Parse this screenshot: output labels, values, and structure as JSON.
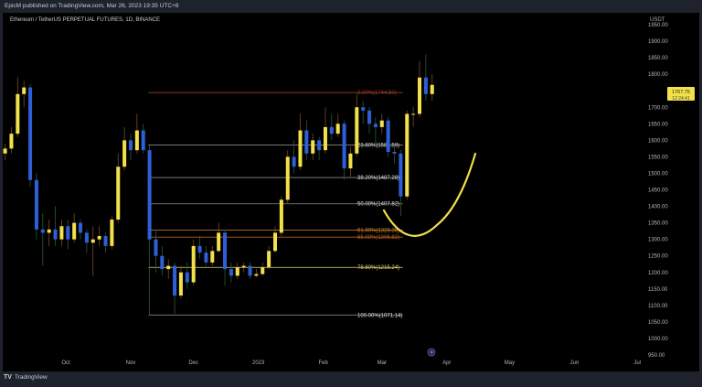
{
  "header": {
    "published": "EpicM published on TradingView.com, Mar 26, 2023 19:35 UTC+8"
  },
  "symbol": "Ethereum / TetherUS PERPETUAL FUTURES, 1D, BINANCE",
  "footer": {
    "brand": "TradingView"
  },
  "colors": {
    "up": "#f2e14a",
    "down": "#2f5fd8",
    "background": "#000000",
    "price_tag": "#f2e14a",
    "curve": "#f2e14a"
  },
  "chart_data": {
    "type": "candlestick",
    "currency": "USDT",
    "ylim": [
      930,
      1990
    ],
    "y_ticks": [
      "1950.00",
      "1900.00",
      "1850.00",
      "1800.00",
      "1700.00",
      "1650.00",
      "1600.00",
      "1550.00",
      "1500.00",
      "1450.00",
      "1400.00",
      "1350.00",
      "1300.00",
      "1250.00",
      "1200.00",
      "1150.00",
      "1100.00",
      "1050.00",
      "1000.00",
      "950.00"
    ],
    "x_ticks": [
      {
        "label": "Oct",
        "date": "2022-10-01"
      },
      {
        "label": "Nov",
        "date": "2022-11-01"
      },
      {
        "label": "Dec",
        "date": "2022-12-01"
      },
      {
        "label": "2023",
        "date": "2023-01-01"
      },
      {
        "label": "Feb",
        "date": "2023-02-01"
      },
      {
        "label": "Mar",
        "date": "2023-03-01"
      },
      {
        "label": "Apr",
        "date": "2023-04-01"
      },
      {
        "label": "May",
        "date": "2023-05-01"
      },
      {
        "label": "Jun",
        "date": "2023-06-01"
      },
      {
        "label": "Jul",
        "date": "2023-07-01"
      }
    ],
    "last_price": {
      "value": "1767.75",
      "countdown": "12:24:41"
    },
    "candles_columns": [
      "date",
      "open",
      "high",
      "low",
      "close"
    ],
    "candles": [
      [
        "2022-09-02",
        1560,
        1590,
        1540,
        1575
      ],
      [
        "2022-09-05",
        1575,
        1640,
        1560,
        1620
      ],
      [
        "2022-09-08",
        1620,
        1790,
        1610,
        1740
      ],
      [
        "2022-09-11",
        1740,
        1780,
        1700,
        1760
      ],
      [
        "2022-09-14",
        1760,
        1770,
        1460,
        1480
      ],
      [
        "2022-09-17",
        1480,
        1500,
        1300,
        1330
      ],
      [
        "2022-09-20",
        1330,
        1380,
        1220,
        1320
      ],
      [
        "2022-09-23",
        1320,
        1360,
        1280,
        1330
      ],
      [
        "2022-09-26",
        1330,
        1400,
        1280,
        1300
      ],
      [
        "2022-09-29",
        1300,
        1360,
        1280,
        1340
      ],
      [
        "2022-10-02",
        1340,
        1360,
        1270,
        1300
      ],
      [
        "2022-10-05",
        1300,
        1380,
        1290,
        1350
      ],
      [
        "2022-10-08",
        1350,
        1360,
        1300,
        1320
      ],
      [
        "2022-10-11",
        1320,
        1330,
        1260,
        1290
      ],
      [
        "2022-10-14",
        1290,
        1340,
        1190,
        1300
      ],
      [
        "2022-10-17",
        1300,
        1340,
        1280,
        1310
      ],
      [
        "2022-10-20",
        1310,
        1320,
        1260,
        1280
      ],
      [
        "2022-10-23",
        1280,
        1370,
        1270,
        1360
      ],
      [
        "2022-10-26",
        1360,
        1560,
        1350,
        1520
      ],
      [
        "2022-10-29",
        1520,
        1640,
        1510,
        1600
      ],
      [
        "2022-11-01",
        1600,
        1620,
        1540,
        1570
      ],
      [
        "2022-11-04",
        1570,
        1680,
        1560,
        1630
      ],
      [
        "2022-11-07",
        1630,
        1650,
        1560,
        1570
      ],
      [
        "2022-11-10",
        1570,
        1590,
        1070,
        1300
      ],
      [
        "2022-11-13",
        1300,
        1330,
        1200,
        1250
      ],
      [
        "2022-11-16",
        1250,
        1280,
        1190,
        1210
      ],
      [
        "2022-11-19",
        1210,
        1240,
        1180,
        1220
      ],
      [
        "2022-11-22",
        1220,
        1230,
        1075,
        1130
      ],
      [
        "2022-11-25",
        1130,
        1220,
        1120,
        1200
      ],
      [
        "2022-11-28",
        1200,
        1230,
        1150,
        1170
      ],
      [
        "2022-12-01",
        1170,
        1300,
        1160,
        1280
      ],
      [
        "2022-12-04",
        1280,
        1310,
        1240,
        1260
      ],
      [
        "2022-12-07",
        1260,
        1280,
        1220,
        1230
      ],
      [
        "2022-12-10",
        1230,
        1280,
        1220,
        1265
      ],
      [
        "2022-12-13",
        1265,
        1350,
        1260,
        1320
      ],
      [
        "2022-12-16",
        1320,
        1330,
        1160,
        1210
      ],
      [
        "2022-12-19",
        1210,
        1230,
        1170,
        1190
      ],
      [
        "2022-12-22",
        1190,
        1230,
        1180,
        1215
      ],
      [
        "2022-12-25",
        1215,
        1230,
        1200,
        1220
      ],
      [
        "2022-12-28",
        1220,
        1230,
        1180,
        1190
      ],
      [
        "2022-12-31",
        1190,
        1210,
        1185,
        1195
      ],
      [
        "2023-01-03",
        1195,
        1230,
        1190,
        1215
      ],
      [
        "2023-01-06",
        1215,
        1280,
        1210,
        1265
      ],
      [
        "2023-01-09",
        1265,
        1340,
        1260,
        1320
      ],
      [
        "2023-01-12",
        1320,
        1430,
        1310,
        1420
      ],
      [
        "2023-01-15",
        1420,
        1570,
        1410,
        1550
      ],
      [
        "2023-01-18",
        1550,
        1600,
        1500,
        1520
      ],
      [
        "2023-01-21",
        1520,
        1680,
        1510,
        1630
      ],
      [
        "2023-01-24",
        1630,
        1660,
        1540,
        1560
      ],
      [
        "2023-01-27",
        1560,
        1620,
        1540,
        1600
      ],
      [
        "2023-01-30",
        1600,
        1610,
        1540,
        1570
      ],
      [
        "2023-02-02",
        1570,
        1700,
        1560,
        1640
      ],
      [
        "2023-02-05",
        1640,
        1680,
        1600,
        1620
      ],
      [
        "2023-02-08",
        1620,
        1680,
        1610,
        1650
      ],
      [
        "2023-02-11",
        1650,
        1660,
        1480,
        1515
      ],
      [
        "2023-02-14",
        1515,
        1580,
        1490,
        1560
      ],
      [
        "2023-02-17",
        1560,
        1740,
        1550,
        1700
      ],
      [
        "2023-02-20",
        1700,
        1720,
        1650,
        1690
      ],
      [
        "2023-02-23",
        1690,
        1700,
        1620,
        1650
      ],
      [
        "2023-02-26",
        1650,
        1670,
        1580,
        1640
      ],
      [
        "2023-03-01",
        1640,
        1680,
        1620,
        1660
      ],
      [
        "2023-03-04",
        1660,
        1670,
        1550,
        1565
      ],
      [
        "2023-03-07",
        1565,
        1580,
        1530,
        1560
      ],
      [
        "2023-03-10",
        1560,
        1570,
        1370,
        1430
      ],
      [
        "2023-03-13",
        1430,
        1690,
        1420,
        1680
      ],
      [
        "2023-03-16",
        1680,
        1700,
        1640,
        1680
      ],
      [
        "2023-03-19",
        1680,
        1840,
        1670,
        1790
      ],
      [
        "2023-03-22",
        1790,
        1860,
        1720,
        1740
      ],
      [
        "2023-03-25",
        1740,
        1800,
        1720,
        1767.75
      ]
    ],
    "fibonacci": {
      "start_date": "2022-11-09",
      "end_date": "2023-03-11",
      "levels": [
        {
          "label": "0.00%(1744.50)",
          "price": 1744.5,
          "color": "#9b3b2b"
        },
        {
          "label": "23.60%(1585.59)",
          "price": 1585.59,
          "color": "#8a8a8a"
        },
        {
          "label": "38.20%(1487.28)",
          "price": 1487.28,
          "color": "#8a8a8a"
        },
        {
          "label": "50.00%(1407.82)",
          "price": 1407.82,
          "color": "#8a8a8a"
        },
        {
          "label": "61.80%(1328.36)",
          "price": 1328.36,
          "color": "#d08a2e"
        },
        {
          "label": "65.00%(1306.82)",
          "price": 1306.82,
          "color": "#b8621e"
        },
        {
          "label": "78.60%(1215.24)",
          "price": 1215.24,
          "color": "#e0d870"
        },
        {
          "label": "100.00%(1071.14)",
          "price": 1071.14,
          "color": "#9a9a9a"
        }
      ]
    }
  }
}
